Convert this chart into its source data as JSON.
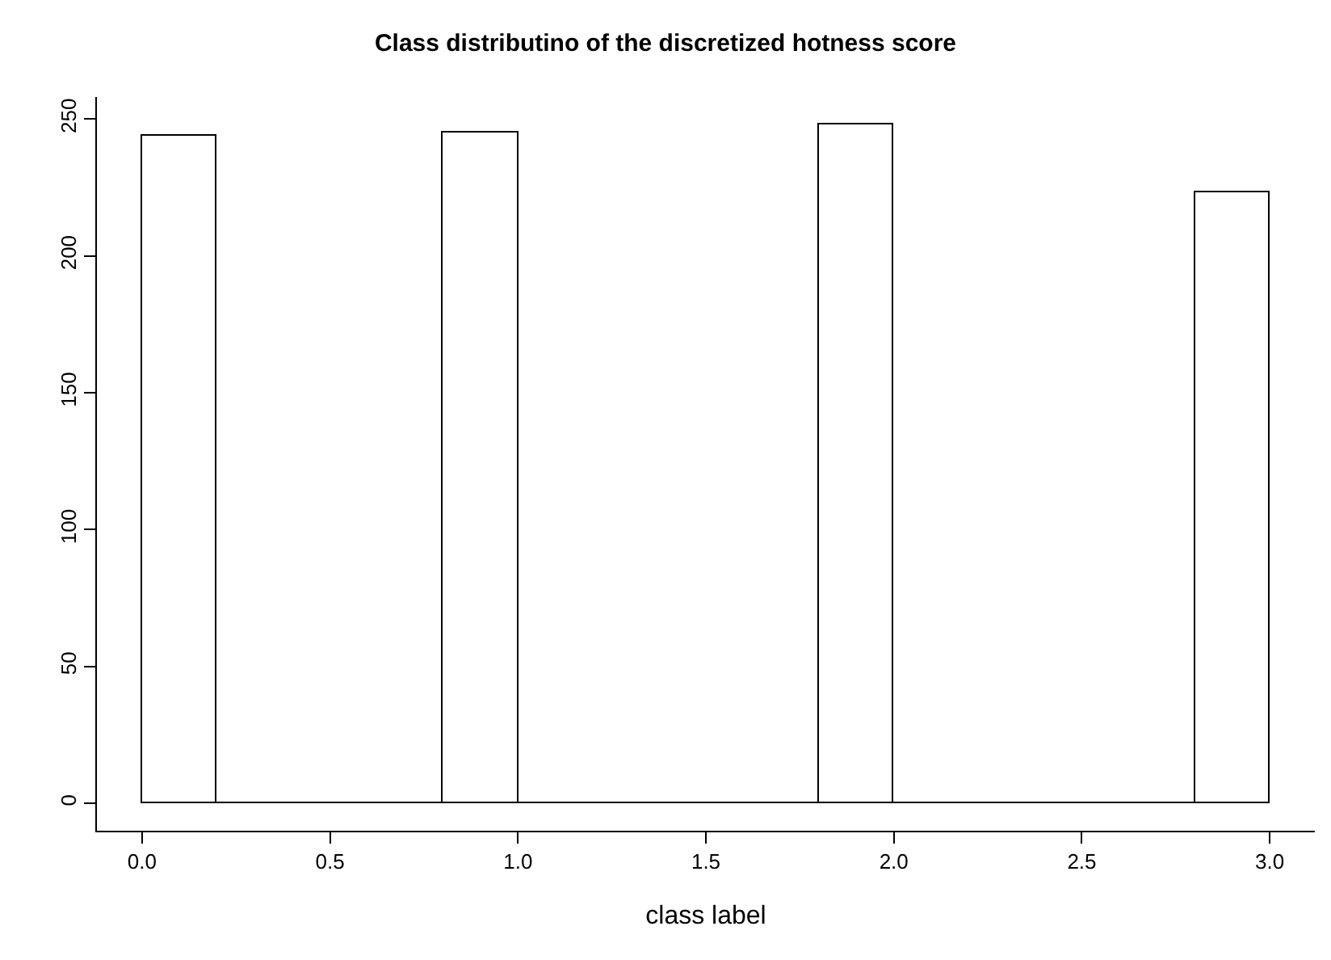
{
  "chart_data": {
    "type": "histogram",
    "title": "Class distributino of the discretized hotness score",
    "xlabel": "class label",
    "bins": [
      0,
      0.2,
      0.4,
      0.6,
      0.8,
      1.0,
      1.2,
      1.4,
      1.6,
      1.8,
      2.0,
      2.2,
      2.4,
      2.6,
      2.8,
      3.0
    ],
    "values": [
      244,
      0,
      0,
      0,
      245,
      0,
      0,
      0,
      0,
      248,
      0,
      0,
      0,
      0,
      223
    ],
    "xlim": [
      -0.12,
      3.12
    ],
    "xticks": [
      {
        "value": 0,
        "label": "0.0"
      },
      0.5,
      {
        "value": 1,
        "label": "1.0"
      },
      1.5,
      {
        "value": 2,
        "label": "2.0"
      },
      2.5,
      {
        "value": 3,
        "label": "3.0"
      }
    ],
    "ylim": [
      -10,
      258
    ],
    "yticks": [
      0,
      50,
      100,
      150,
      200,
      250
    ]
  }
}
